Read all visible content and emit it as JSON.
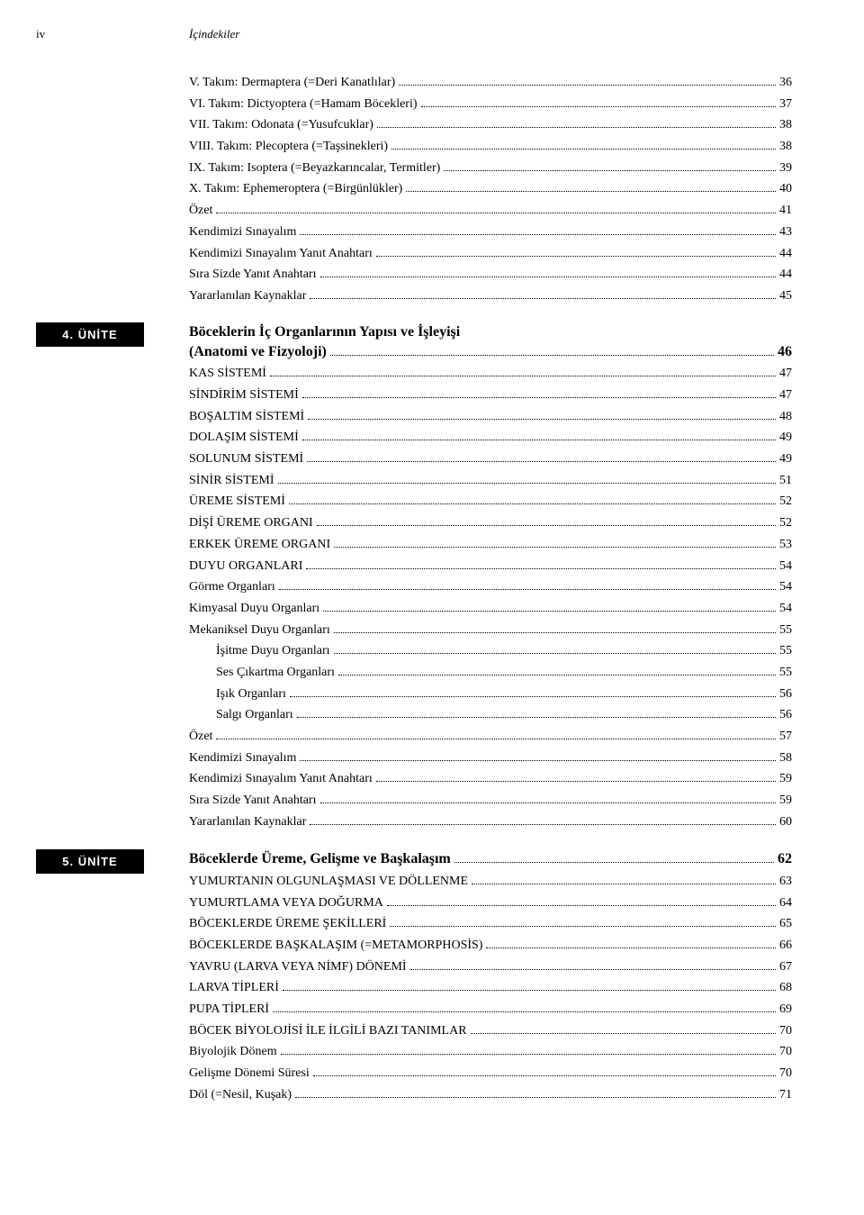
{
  "header": {
    "pageNumber": "iv",
    "title": "İçindekiler"
  },
  "intro": [
    {
      "text": "V. Takım: Dermaptera (=Deri Kanatlılar)",
      "page": "36",
      "indent": 0
    },
    {
      "text": "VI. Takım: Dictyoptera (=Hamam Böcekleri)",
      "page": "37",
      "indent": 0
    },
    {
      "text": "VII. Takım: Odonata (=Yusufcuklar)",
      "page": "38",
      "indent": 0
    },
    {
      "text": "VIII. Takım: Plecoptera (=Taşsinekleri)",
      "page": "38",
      "indent": 0
    },
    {
      "text": "IX. Takım: Isoptera (=Beyazkarıncalar, Termitler)",
      "page": "39",
      "indent": 0
    },
    {
      "text": "X. Takım: Ephemeroptera (=Birgünlükler)",
      "page": "40",
      "indent": 0
    },
    {
      "text": "Özet",
      "page": "41",
      "indent": 0
    },
    {
      "text": "Kendimizi Sınayalım",
      "page": "43",
      "indent": 0
    },
    {
      "text": "Kendimizi Sınayalım Yanıt Anahtarı",
      "page": "44",
      "indent": 0
    },
    {
      "text": "Sıra Sizde Yanıt Anahtarı",
      "page": "44",
      "indent": 0
    },
    {
      "text": "Yararlanılan Kaynaklar",
      "page": "45",
      "indent": 0
    }
  ],
  "unit4": {
    "tag": "4. ÜNİTE",
    "titleLine1": "Böceklerin İç Organlarının Yapısı ve İşleyişi",
    "titleLine2": "(Anatomi ve Fizyoloji)",
    "titlePage": "46",
    "items": [
      {
        "text": "KAS SİSTEMİ",
        "page": "47",
        "indent": 0
      },
      {
        "text": "SİNDİRİM SİSTEMİ",
        "page": "47",
        "indent": 0
      },
      {
        "text": "BOŞALTIM SİSTEMİ",
        "page": "48",
        "indent": 0
      },
      {
        "text": "DOLAŞIM SİSTEMİ",
        "page": "49",
        "indent": 0
      },
      {
        "text": "SOLUNUM SİSTEMİ",
        "page": "49",
        "indent": 0
      },
      {
        "text": "SİNİR SİSTEMİ",
        "page": "51",
        "indent": 0
      },
      {
        "text": "ÜREME SİSTEMİ",
        "page": "52",
        "indent": 0
      },
      {
        "text": "DİŞİ ÜREME ORGANI",
        "page": "52",
        "indent": 0
      },
      {
        "text": "ERKEK ÜREME ORGANI",
        "page": "53",
        "indent": 0
      },
      {
        "text": "DUYU ORGANLARI",
        "page": "54",
        "indent": 0
      },
      {
        "text": "Görme Organları",
        "page": "54",
        "indent": 0
      },
      {
        "text": "Kimyasal Duyu Organları",
        "page": "54",
        "indent": 0
      },
      {
        "text": "Mekaniksel Duyu Organları",
        "page": "55",
        "indent": 0
      },
      {
        "text": "İşitme Duyu Organları",
        "page": "55",
        "indent": 1
      },
      {
        "text": "Ses Çıkartma Organları",
        "page": "55",
        "indent": 1
      },
      {
        "text": "Işık Organları",
        "page": "56",
        "indent": 1
      },
      {
        "text": "Salgı Organları",
        "page": "56",
        "indent": 1
      },
      {
        "text": "Özet",
        "page": "57",
        "indent": 0
      },
      {
        "text": "Kendimizi Sınayalım",
        "page": "58",
        "indent": 0
      },
      {
        "text": "Kendimizi Sınayalım Yanıt Anahtarı",
        "page": "59",
        "indent": 0
      },
      {
        "text": "Sıra Sizde Yanıt Anahtarı",
        "page": "59",
        "indent": 0
      },
      {
        "text": "Yararlanılan Kaynaklar",
        "page": "60",
        "indent": 0
      }
    ]
  },
  "unit5": {
    "tag": "5. ÜNİTE",
    "title": "Böceklerde Üreme, Gelişme ve Başkalaşım",
    "titlePage": "62",
    "items": [
      {
        "text": "YUMURTANIN OLGUNLAŞMASI VE DÖLLENME",
        "page": "63",
        "indent": 0
      },
      {
        "text": "YUMURTLAMA VEYA DOĞURMA",
        "page": "64",
        "indent": 0
      },
      {
        "text": "BÖCEKLERDE ÜREME ŞEKİLLERİ",
        "page": "65",
        "indent": 0
      },
      {
        "text": "BÖCEKLERDE BAŞKALAŞIM (=METAMORPHOSİS)",
        "page": "66",
        "indent": 0
      },
      {
        "text": "YAVRU (LARVA VEYA NİMF) DÖNEMİ",
        "page": "67",
        "indent": 0
      },
      {
        "text": "LARVA TİPLERİ",
        "page": "68",
        "indent": 0
      },
      {
        "text": "PUPA TİPLERİ",
        "page": "69",
        "indent": 0
      },
      {
        "text": "BÖCEK BİYOLOJİSİ İLE İLGİLİ BAZI TANIMLAR",
        "page": "70",
        "indent": 0
      },
      {
        "text": "Biyolojik Dönem",
        "page": "70",
        "indent": 0
      },
      {
        "text": "Gelişme Dönemi Süresi",
        "page": "70",
        "indent": 0
      },
      {
        "text": "Döl (=Nesil, Kuşak)",
        "page": "71",
        "indent": 0
      }
    ]
  }
}
